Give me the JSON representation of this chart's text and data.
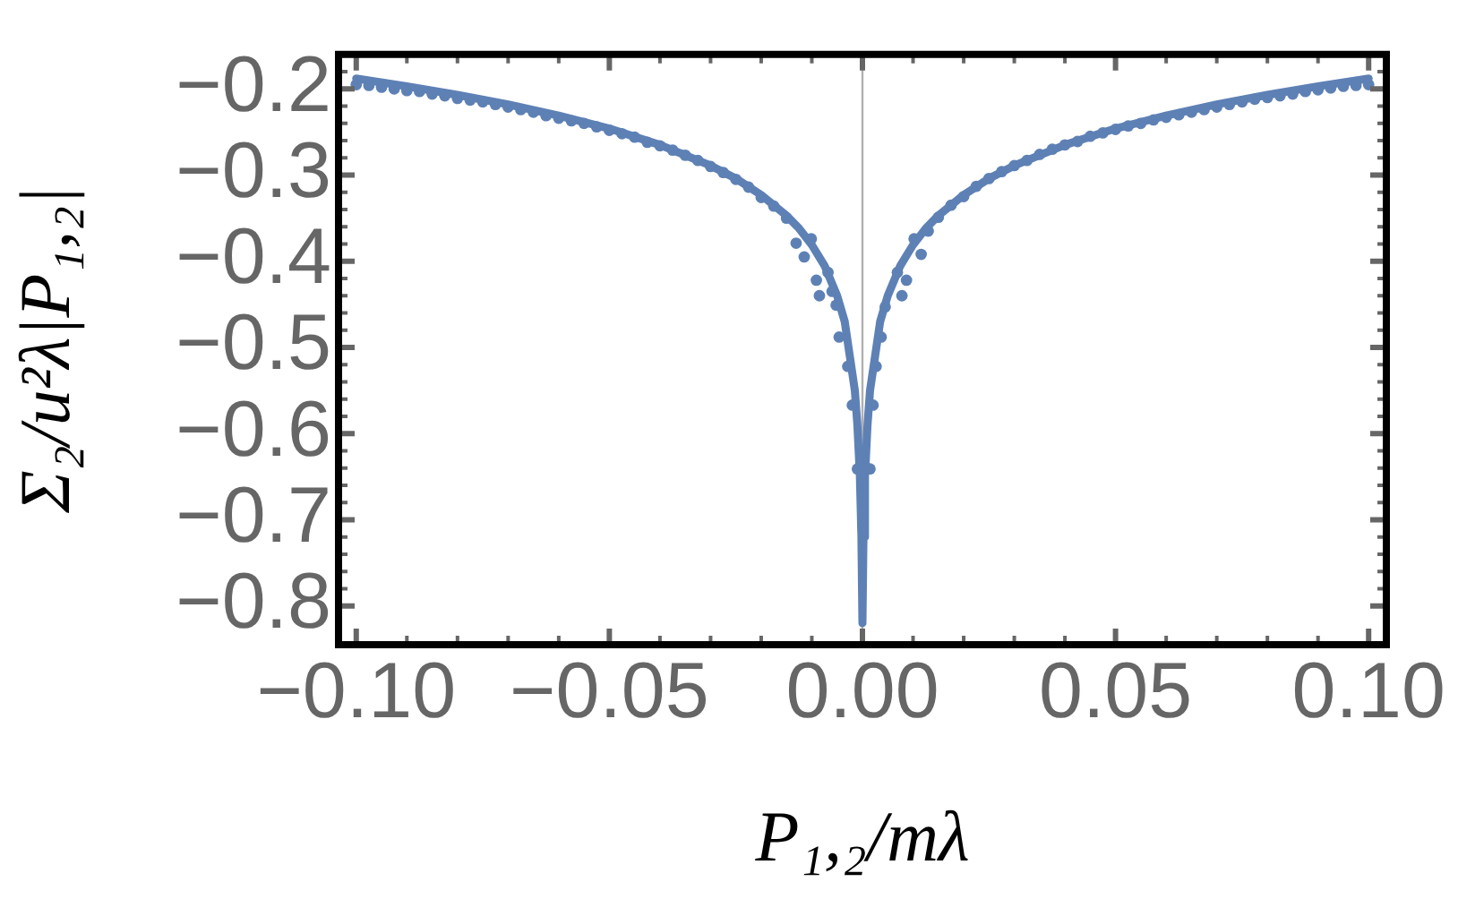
{
  "chart_data": {
    "type": "scatter",
    "xlabel": "P₁,₂/mλ",
    "ylabel": "Σ₂/u²λ|P₁,₂|",
    "xlim": [
      -0.1035,
      0.1035
    ],
    "ylim": [
      -0.845,
      -0.16
    ],
    "xticks": [
      {
        "value": -0.1,
        "label": "−0.10"
      },
      {
        "value": -0.09,
        "label": null
      },
      {
        "value": -0.08,
        "label": null
      },
      {
        "value": -0.07,
        "label": null
      },
      {
        "value": -0.06,
        "label": null
      },
      {
        "value": -0.05,
        "label": "−0.05"
      },
      {
        "value": -0.04,
        "label": null
      },
      {
        "value": -0.03,
        "label": null
      },
      {
        "value": -0.02,
        "label": null
      },
      {
        "value": -0.01,
        "label": null
      },
      {
        "value": 0,
        "label": "0.00"
      },
      {
        "value": 0.01,
        "label": null
      },
      {
        "value": 0.02,
        "label": null
      },
      {
        "value": 0.03,
        "label": null
      },
      {
        "value": 0.04,
        "label": null
      },
      {
        "value": 0.05,
        "label": "0.05"
      },
      {
        "value": 0.06,
        "label": null
      },
      {
        "value": 0.07,
        "label": null
      },
      {
        "value": 0.08,
        "label": null
      },
      {
        "value": 0.09,
        "label": null
      },
      {
        "value": 0.1,
        "label": "0.10"
      }
    ],
    "yticks": [
      {
        "value": -0.8,
        "label": "−0.8"
      },
      {
        "value": -0.78,
        "label": null
      },
      {
        "value": -0.76,
        "label": null
      },
      {
        "value": -0.74,
        "label": null
      },
      {
        "value": -0.72,
        "label": null
      },
      {
        "value": -0.7,
        "label": "−0.7"
      },
      {
        "value": -0.68,
        "label": null
      },
      {
        "value": -0.66,
        "label": null
      },
      {
        "value": -0.64,
        "label": null
      },
      {
        "value": -0.62,
        "label": null
      },
      {
        "value": -0.6,
        "label": "−0.6"
      },
      {
        "value": -0.58,
        "label": null
      },
      {
        "value": -0.56,
        "label": null
      },
      {
        "value": -0.54,
        "label": null
      },
      {
        "value": -0.52,
        "label": null
      },
      {
        "value": -0.5,
        "label": "−0.5"
      },
      {
        "value": -0.48,
        "label": null
      },
      {
        "value": -0.46,
        "label": null
      },
      {
        "value": -0.44,
        "label": null
      },
      {
        "value": -0.42,
        "label": null
      },
      {
        "value": -0.4,
        "label": "−0.4"
      },
      {
        "value": -0.38,
        "label": null
      },
      {
        "value": -0.36,
        "label": null
      },
      {
        "value": -0.34,
        "label": null
      },
      {
        "value": -0.32,
        "label": null
      },
      {
        "value": -0.3,
        "label": "−0.3"
      },
      {
        "value": -0.28,
        "label": null
      },
      {
        "value": -0.26,
        "label": null
      },
      {
        "value": -0.24,
        "label": null
      },
      {
        "value": -0.22,
        "label": null
      },
      {
        "value": -0.2,
        "label": "−0.2"
      },
      {
        "value": -0.18,
        "label": null
      }
    ],
    "grid": false,
    "legend": false,
    "marker": "circle",
    "ref_lines": [
      {
        "axis": "x",
        "value": 0,
        "color": "#b0b0b0"
      }
    ],
    "series": [
      {
        "color": "#5e81b5",
        "x": [
          -0.1,
          -0.0975,
          -0.095,
          -0.0925,
          -0.09,
          -0.0875,
          -0.085,
          -0.0825,
          -0.08,
          -0.0775,
          -0.075,
          -0.0725,
          -0.07,
          -0.0675,
          -0.065,
          -0.0625,
          -0.06,
          -0.0575,
          -0.055,
          -0.0525,
          -0.05,
          -0.0475,
          -0.045,
          -0.0425,
          -0.04,
          -0.0375,
          -0.035,
          -0.0325,
          -0.03,
          -0.0275,
          -0.025,
          -0.0225,
          -0.02,
          -0.0175,
          -0.015,
          -0.0131,
          -0.0115,
          -0.0101,
          -0.0091,
          -0.0085,
          -0.0068,
          -0.006,
          -0.0052,
          -0.0046,
          -0.0029,
          -0.002,
          -0.001,
          0.0015,
          0.0021,
          0.0027,
          0.0037,
          0.0045,
          0.0069,
          0.0078,
          0.0087,
          0.0102,
          0.0116,
          0.013,
          0.015,
          0.0175,
          0.02,
          0.0225,
          0.025,
          0.0275,
          0.03,
          0.0325,
          0.035,
          0.0375,
          0.04,
          0.0425,
          0.045,
          0.0475,
          0.05,
          0.0525,
          0.055,
          0.0575,
          0.06,
          0.0625,
          0.065,
          0.0675,
          0.07,
          0.0725,
          0.075,
          0.0775,
          0.08,
          0.0825,
          0.085,
          0.0875,
          0.09,
          0.0925,
          0.095,
          0.0975,
          0.1
        ],
        "values": [
          -0.195,
          -0.196,
          -0.198,
          -0.2,
          -0.202,
          -0.203,
          -0.206,
          -0.208,
          -0.211,
          -0.213,
          -0.215,
          -0.218,
          -0.221,
          -0.224,
          -0.227,
          -0.231,
          -0.234,
          -0.237,
          -0.24,
          -0.244,
          -0.248,
          -0.252,
          -0.256,
          -0.262,
          -0.266,
          -0.271,
          -0.277,
          -0.283,
          -0.29,
          -0.297,
          -0.305,
          -0.314,
          -0.326,
          -0.336,
          -0.35,
          -0.379,
          -0.395,
          -0.374,
          -0.422,
          -0.44,
          -0.413,
          -0.435,
          -0.451,
          -0.488,
          -0.522,
          -0.567,
          -0.641,
          -0.641,
          -0.567,
          -0.522,
          -0.488,
          -0.453,
          -0.413,
          -0.44,
          -0.422,
          -0.374,
          -0.392,
          -0.365,
          -0.349,
          -0.335,
          -0.325,
          -0.313,
          -0.304,
          -0.296,
          -0.289,
          -0.283,
          -0.276,
          -0.27,
          -0.265,
          -0.261,
          -0.255,
          -0.251,
          -0.247,
          -0.243,
          -0.24,
          -0.236,
          -0.233,
          -0.23,
          -0.227,
          -0.224,
          -0.221,
          -0.218,
          -0.215,
          -0.212,
          -0.21,
          -0.208,
          -0.206,
          -0.203,
          -0.201,
          -0.199,
          -0.197,
          -0.196,
          -0.195
        ]
      },
      {
        "type": "line",
        "color": "#5e81b5",
        "marker": "none",
        "x": [
          -0.1,
          -0.09,
          -0.08,
          -0.07,
          -0.06,
          -0.05,
          -0.04,
          -0.03,
          -0.025,
          -0.02,
          -0.015,
          -0.0125,
          -0.01,
          -0.0075,
          -0.005,
          -0.0035,
          -0.0025,
          -0.0015,
          -0.001,
          -0.0005,
          -0.0002,
          0,
          0.0002,
          0.0005,
          0.001,
          0.0015,
          0.0025,
          0.0035,
          0.005,
          0.0075,
          0.01,
          0.0125,
          0.015,
          0.02,
          0.025,
          0.03,
          0.04,
          0.05,
          0.06,
          0.07,
          0.08,
          0.09,
          0.1
        ],
        "values": [
          -0.188,
          -0.197,
          -0.207,
          -0.218,
          -0.231,
          -0.246,
          -0.265,
          -0.289,
          -0.304,
          -0.323,
          -0.347,
          -0.362,
          -0.381,
          -0.405,
          -0.44,
          -0.47,
          -0.51,
          -0.55,
          -0.59,
          -0.65,
          -0.72,
          -0.82,
          -0.72,
          -0.65,
          -0.59,
          -0.55,
          -0.51,
          -0.47,
          -0.44,
          -0.405,
          -0.381,
          -0.362,
          -0.347,
          -0.323,
          -0.304,
          -0.289,
          -0.265,
          -0.246,
          -0.231,
          -0.218,
          -0.207,
          -0.197,
          -0.188
        ]
      }
    ]
  }
}
